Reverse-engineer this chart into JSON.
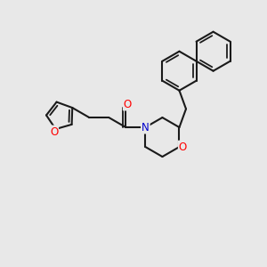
{
  "bg_color": "#e8e8e8",
  "bond_color": "#1a1a1a",
  "bond_width": 1.5,
  "atom_colors": {
    "O": "#ff0000",
    "N": "#0000cc",
    "C": "#1a1a1a"
  },
  "font_size": 8.5
}
